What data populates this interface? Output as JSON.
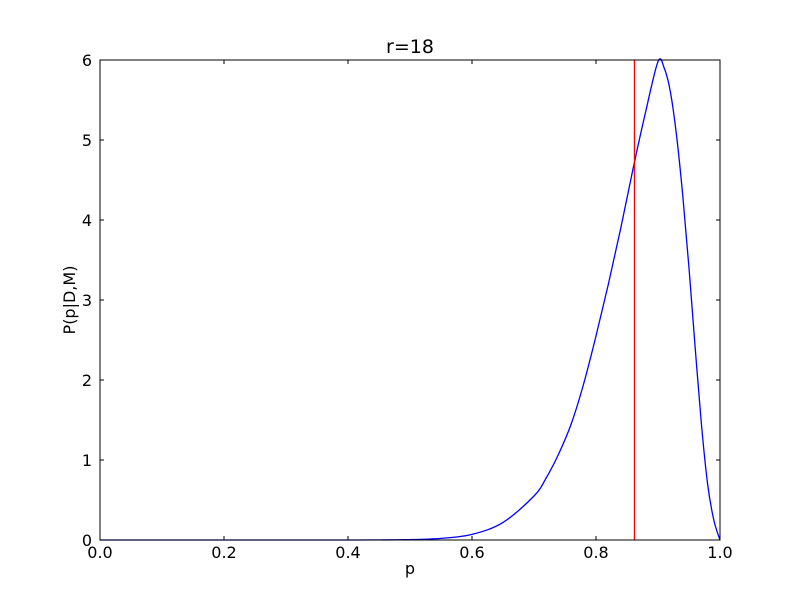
{
  "chart_data": {
    "type": "line",
    "title": "r=18",
    "xlabel": "p",
    "ylabel": "P(p|D,M)",
    "xlim": [
      0.0,
      1.0
    ],
    "ylim": [
      0,
      6
    ],
    "xticks": [
      "0.0",
      "0.2",
      "0.4",
      "0.6",
      "0.8",
      "1.0"
    ],
    "yticks": [
      "0",
      "1",
      "2",
      "3",
      "4",
      "5",
      "6"
    ],
    "grid": false,
    "legend": "none",
    "series": [
      {
        "color": "#0000ff",
        "points": [
          [
            0.0,
            0.0
          ],
          [
            0.4,
            0.0
          ],
          [
            0.5,
            0.005
          ],
          [
            0.55,
            0.02
          ],
          [
            0.6,
            0.07
          ],
          [
            0.65,
            0.22
          ],
          [
            0.7,
            0.55
          ],
          [
            0.72,
            0.78
          ],
          [
            0.74,
            1.08
          ],
          [
            0.76,
            1.45
          ],
          [
            0.78,
            1.95
          ],
          [
            0.8,
            2.55
          ],
          [
            0.82,
            3.2
          ],
          [
            0.84,
            3.9
          ],
          [
            0.86,
            4.65
          ],
          [
            0.88,
            5.35
          ],
          [
            0.9,
            5.98
          ],
          [
            0.91,
            5.9
          ],
          [
            0.92,
            5.6
          ],
          [
            0.93,
            5.05
          ],
          [
            0.94,
            4.3
          ],
          [
            0.95,
            3.4
          ],
          [
            0.96,
            2.4
          ],
          [
            0.97,
            1.45
          ],
          [
            0.98,
            0.7
          ],
          [
            0.99,
            0.25
          ],
          [
            1.0,
            0.0
          ]
        ]
      }
    ],
    "vline": {
      "x": 0.862,
      "color": "#ff0000"
    }
  }
}
